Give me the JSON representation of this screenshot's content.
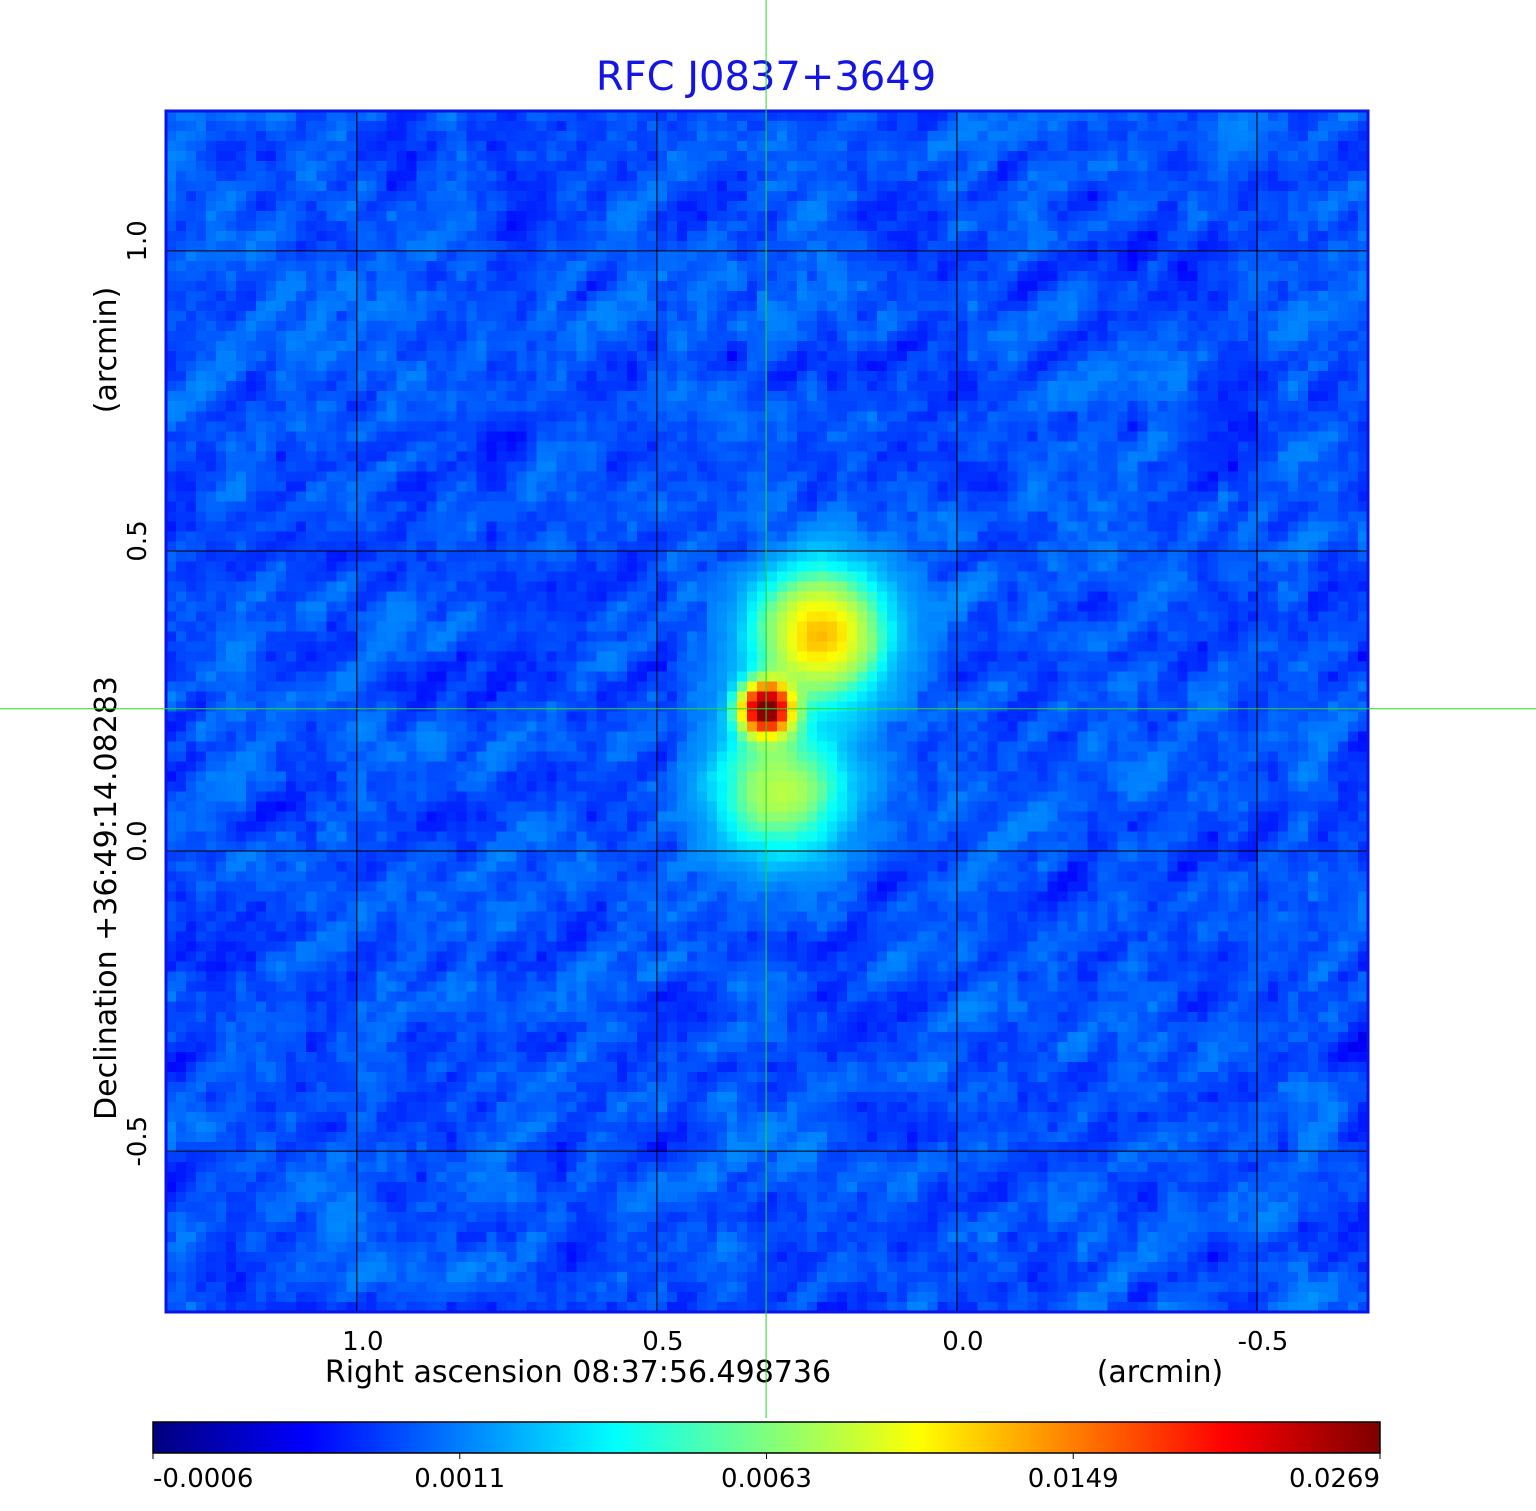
{
  "chart_data": {
    "type": "heatmap",
    "title": "RFC J0837+3649",
    "xlabel": "Right ascension  08:37:56.498736",
    "xunit": "(arcmin)",
    "ylabel": "Declination  +36:49:14.08283",
    "yunit": "(arcmin)",
    "xlim": [
      1.318,
      -0.685
    ],
    "ylim": [
      -0.768,
      1.233
    ],
    "xticks": [
      1.0,
      0.5,
      0.0,
      -0.5
    ],
    "xtick_labels": [
      "1.0",
      "0.5",
      "0.0",
      "-0.5"
    ],
    "yticks": [
      1.0,
      0.5,
      0.0,
      -0.5
    ],
    "ytick_labels": [
      "1.0",
      "0.5",
      "0.0",
      "-0.5"
    ],
    "grid": true,
    "crosshair": {
      "x": 0.318,
      "y": 0.237,
      "color": "#00dd00"
    },
    "colormap": "jet",
    "colorbar": {
      "ticks": [
        -0.0006,
        0.0011,
        0.0063,
        0.0149,
        0.0269
      ],
      "tick_labels": [
        "-0.0006",
        "0.0011",
        "0.0063",
        "0.0149",
        "0.0269"
      ],
      "placement": "bottom"
    },
    "components": [
      {
        "x": 0.318,
        "y": 0.237,
        "peak": 0.0269
      },
      {
        "x": 0.228,
        "y": 0.36,
        "peak": 0.012
      },
      {
        "x": 0.295,
        "y": 0.1,
        "peak": 0.0075
      }
    ],
    "background_level": 0.0008,
    "colors": {
      "title": "#1414e6",
      "frame": "#0a14e6",
      "grid": "#000000"
    }
  }
}
